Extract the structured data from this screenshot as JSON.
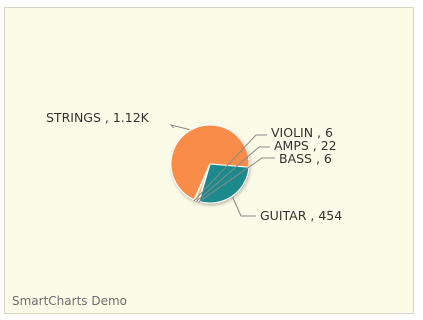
{
  "chart_data": {
    "type": "pie",
    "title": "",
    "legend": "none",
    "slices": [
      {
        "label": "STRINGS",
        "value": 1120,
        "display_value": "1.12K",
        "color": "#f98c48"
      },
      {
        "label": "GUITAR",
        "value": 454,
        "display_value": "454",
        "color": "#1b8a8c"
      },
      {
        "label": "BASS",
        "value": 6,
        "display_value": "6",
        "color": "#f6c655"
      },
      {
        "label": "AMPS",
        "value": 22,
        "display_value": "22",
        "color": "#e6b865"
      },
      {
        "label": "VIOLIN",
        "value": 6,
        "display_value": "6",
        "color": "#f0b47a"
      }
    ]
  },
  "footer": {
    "credit": "SmartCharts Demo"
  },
  "colors": {
    "background": "#fcfbe8",
    "border": "#d9d6c8",
    "slice_stroke": "#ffffff",
    "leader_line": "#888888",
    "text": "#333333"
  }
}
